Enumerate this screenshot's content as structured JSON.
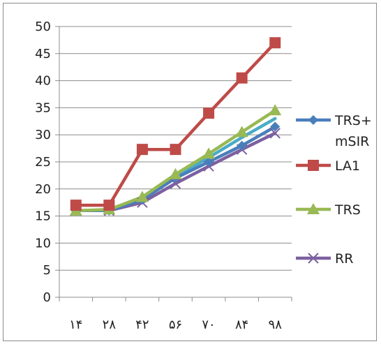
{
  "chart_data": {
    "type": "line",
    "categories": [
      "۱۴",
      "۲۸",
      "۴۲",
      "۵۶",
      "۷۰",
      "۸۴",
      "۹۸"
    ],
    "ylim": [
      0,
      50
    ],
    "yticks": [
      0,
      5,
      10,
      15,
      20,
      25,
      30,
      35,
      40,
      45,
      50
    ],
    "grid": "horizontal",
    "legend_position": "right",
    "series": [
      {
        "name": "TRS+ mSIR",
        "legend_lines": [
          "TRS+",
          "mSIR"
        ],
        "color": "#4a7ebb",
        "marker": "diamond",
        "values": [
          16,
          16,
          18,
          22,
          25,
          28,
          31.5
        ]
      },
      {
        "name": "LA1",
        "legend_lines": [
          "LA1"
        ],
        "color": "#be4b48",
        "marker": "square",
        "values": [
          17,
          17,
          27.3,
          27.3,
          34,
          40.5,
          47
        ]
      },
      {
        "name": "TRS",
        "legend_lines": [
          "TRS"
        ],
        "color": "#98b954",
        "marker": "triangle",
        "values": [
          16,
          16.2,
          18.5,
          22.7,
          26.5,
          30.5,
          34.5
        ]
      },
      {
        "name": "RR",
        "legend_lines": [
          "RR"
        ],
        "color": "#7d60a0",
        "marker": "x",
        "values": [
          16,
          16,
          17.5,
          21,
          24.2,
          27.3,
          30.3
        ]
      }
    ],
    "extra_lines": [
      {
        "color": "#4bacc6",
        "values": [
          16,
          16.1,
          18.2,
          22.3,
          25.8,
          29.5,
          33
        ]
      }
    ]
  }
}
